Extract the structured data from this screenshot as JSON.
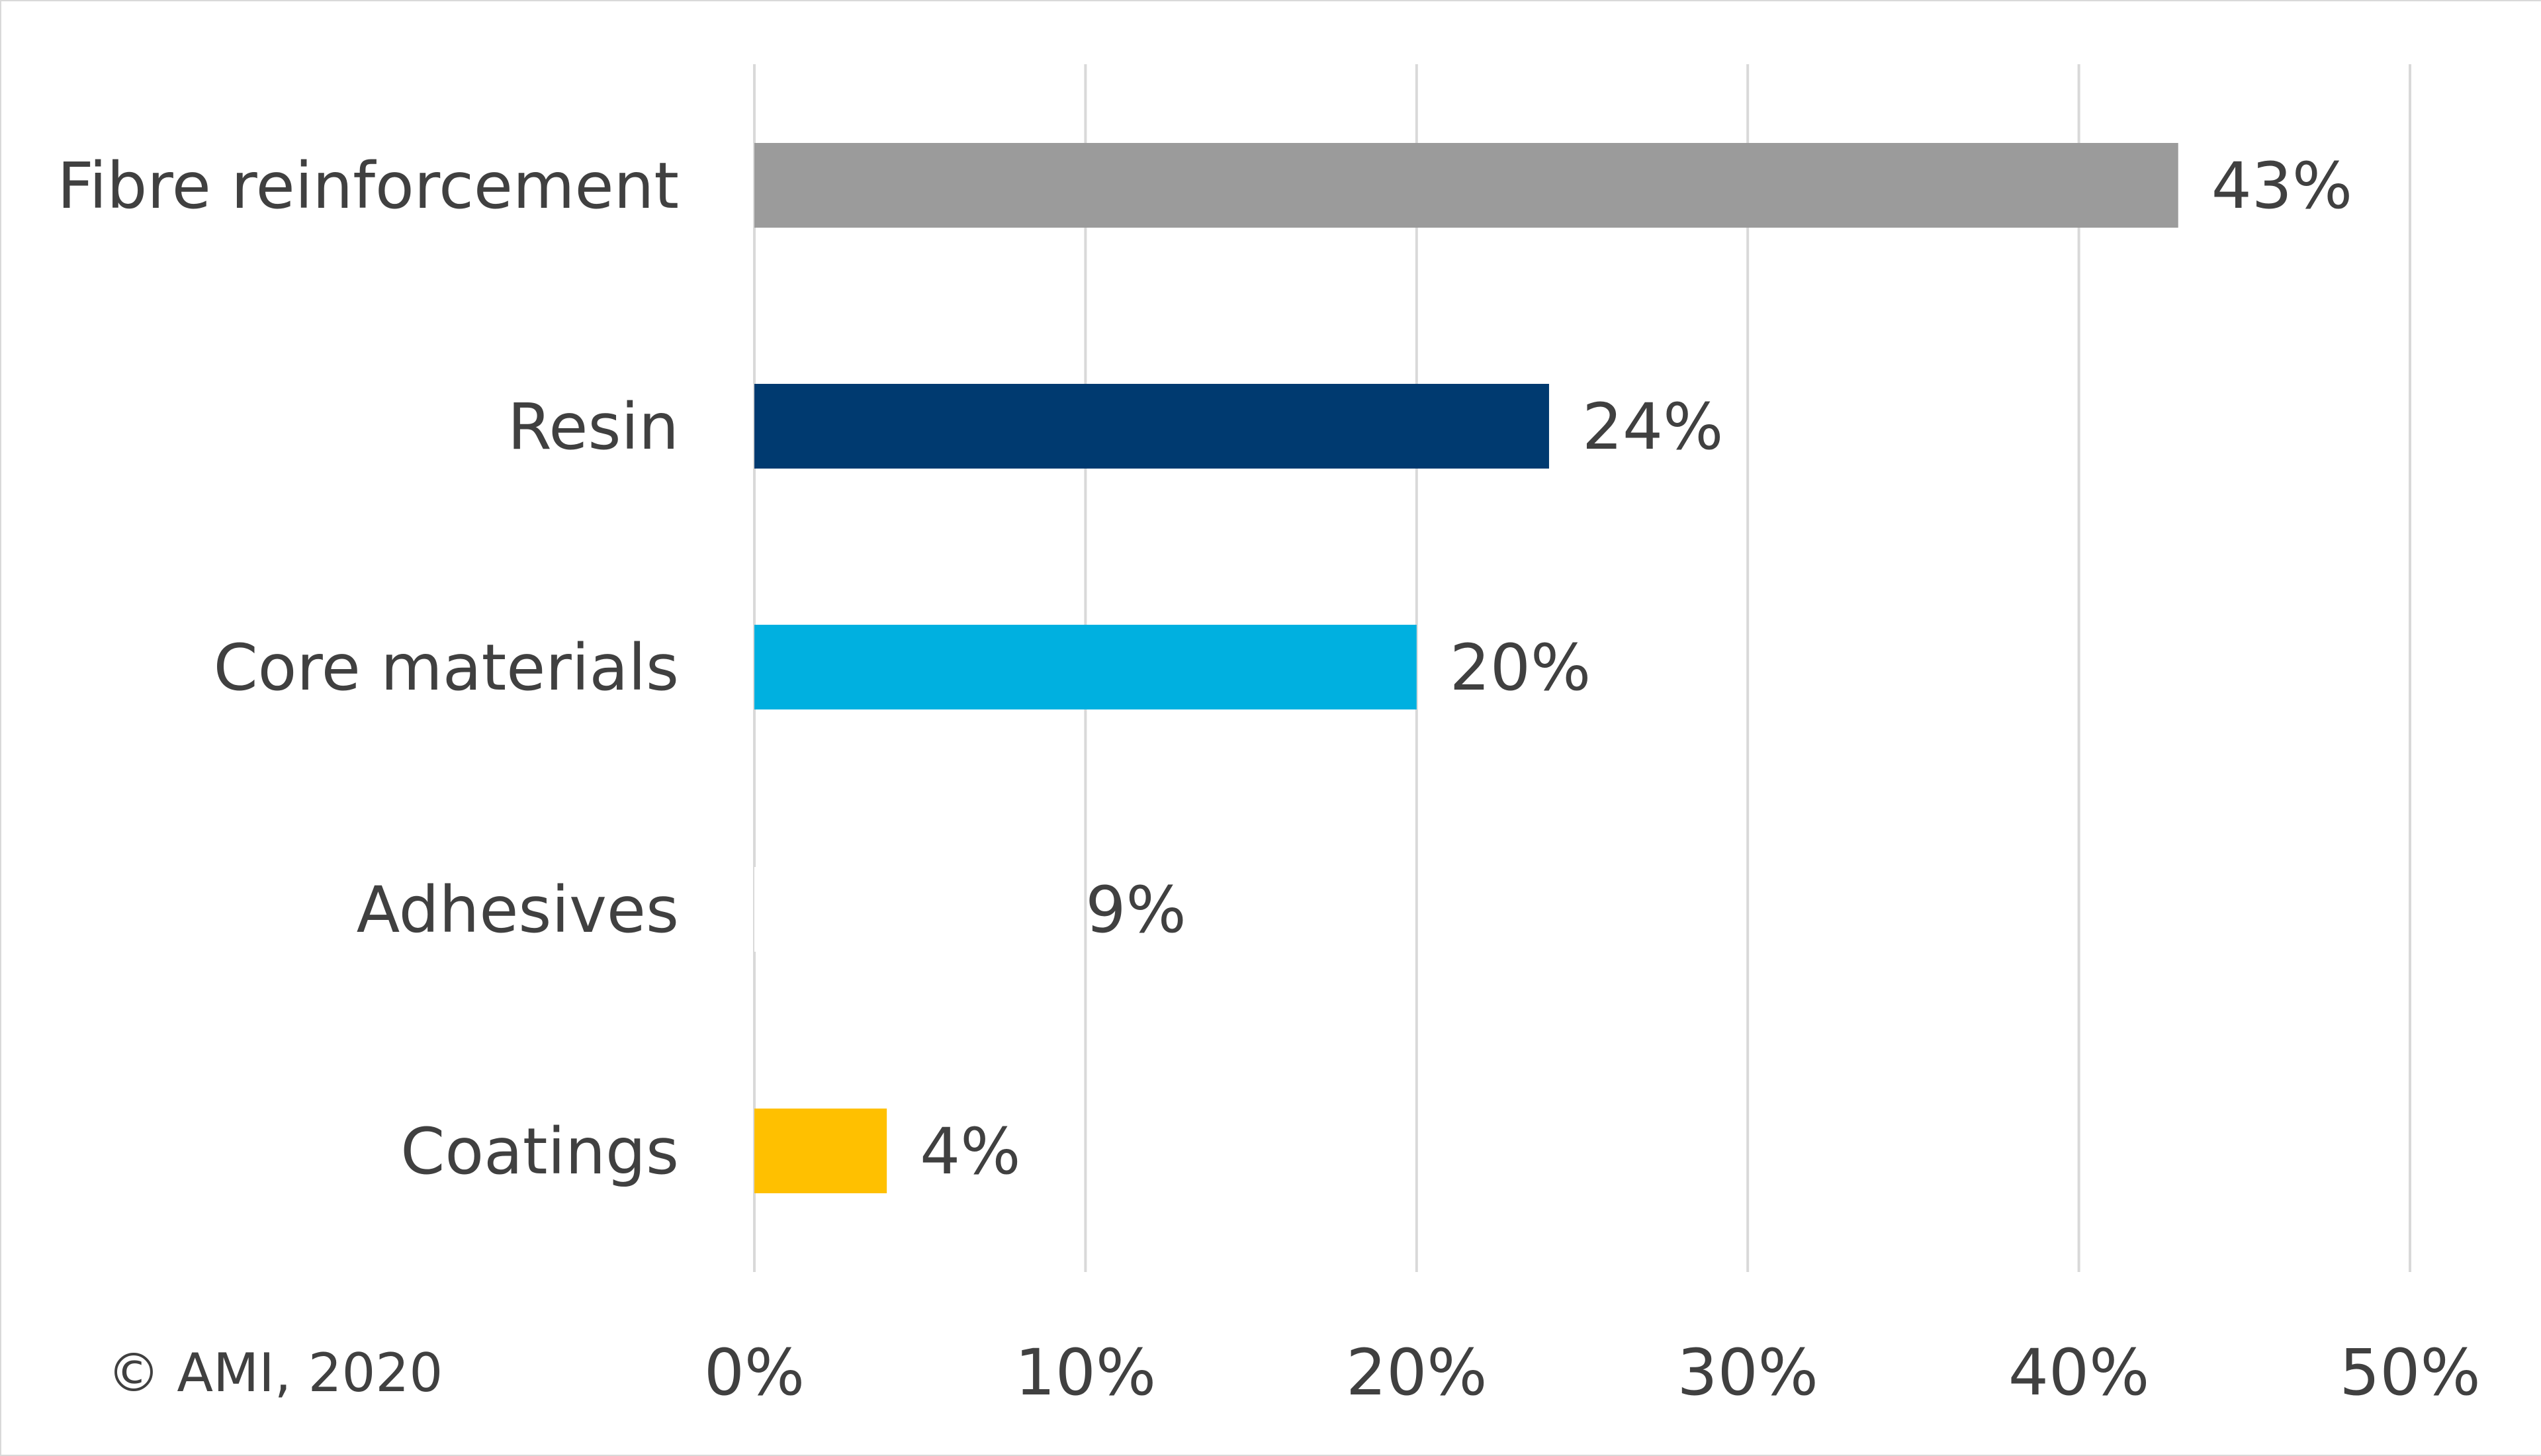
{
  "chart_data": {
    "type": "bar",
    "orientation": "horizontal",
    "categories": [
      "Fibre reinforcement",
      "Resin",
      "Core materials",
      "Adhesives",
      "Coatings"
    ],
    "values": [
      43,
      24,
      20,
      9,
      4
    ],
    "data_labels": [
      "43%",
      "24%",
      "20%",
      "9%",
      "4%"
    ],
    "bar_colors": [
      "#9b9b9b",
      "#003a70",
      "#00b0e0",
      "#ffffff",
      "#ffc000"
    ],
    "xlim": [
      0,
      50
    ],
    "x_ticks": [
      0,
      10,
      20,
      30,
      40,
      50
    ],
    "x_tick_labels": [
      "0%",
      "10%",
      "20%",
      "30%",
      "40%",
      "50%"
    ],
    "title": "",
    "xlabel": "",
    "ylabel": "",
    "grid": true,
    "grid_color": "#d9d9d9",
    "legend": "none"
  },
  "footer": {
    "copyright": "© AMI, 2020"
  }
}
